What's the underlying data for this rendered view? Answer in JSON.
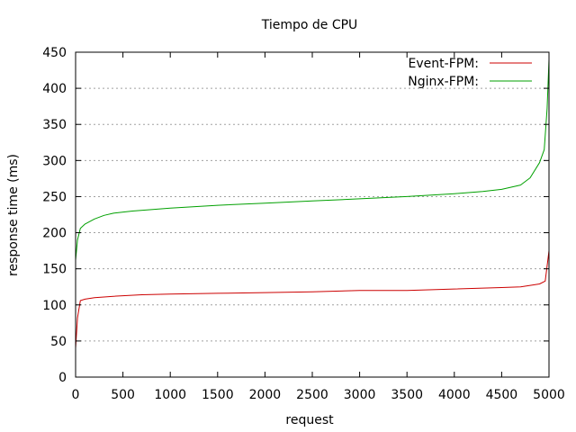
{
  "chart_data": {
    "type": "line",
    "title": "Tiempo de CPU",
    "xlabel": "request",
    "ylabel": "response time (ms)",
    "xlim": [
      0,
      5000
    ],
    "ylim": [
      0,
      450
    ],
    "xticks": [
      0,
      500,
      1000,
      1500,
      2000,
      2500,
      3000,
      3500,
      4000,
      4500,
      5000
    ],
    "yticks": [
      0,
      50,
      100,
      150,
      200,
      250,
      300,
      350,
      400,
      450
    ],
    "grid": true,
    "legend_position": "top-right",
    "series": [
      {
        "name": "Event-FPM:",
        "color": "#cc0000",
        "x": [
          0,
          20,
          50,
          100,
          200,
          400,
          700,
          1000,
          1500,
          2000,
          2500,
          3000,
          3500,
          4000,
          4500,
          4700,
          4800,
          4900,
          4960,
          5000
        ],
        "y": [
          40,
          82,
          106,
          108,
          110,
          112,
          114,
          115,
          116,
          117,
          118,
          120,
          120,
          122,
          124,
          125,
          127,
          129,
          133,
          175
        ]
      },
      {
        "name": "Nginx-FPM:",
        "color": "#00a000",
        "x": [
          0,
          20,
          50,
          100,
          200,
          300,
          400,
          600,
          800,
          1000,
          1500,
          2000,
          2500,
          3000,
          3500,
          4000,
          4300,
          4500,
          4700,
          4800,
          4900,
          4950,
          4980,
          5000
        ],
        "y": [
          162,
          190,
          206,
          212,
          219,
          224,
          227,
          230,
          232,
          234,
          238,
          241,
          244,
          247,
          250,
          254,
          257,
          260,
          266,
          276,
          297,
          315,
          372,
          440
        ]
      }
    ]
  }
}
